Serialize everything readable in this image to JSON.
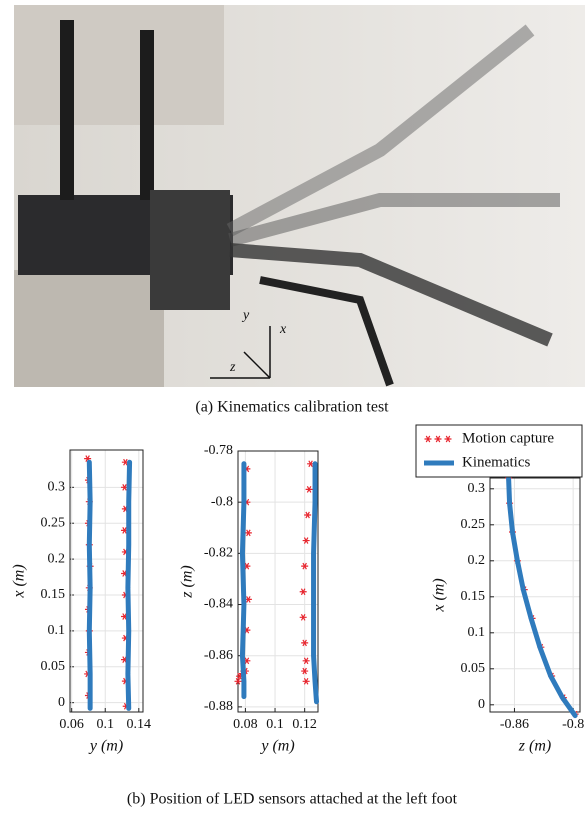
{
  "figure": {
    "photo_caption": "(a) Kinematics calibration test",
    "photo_labels": [
      "y",
      "x",
      "z"
    ],
    "caption": "(b) Position of LED sensors attached at the left foot"
  },
  "chart_data": [
    {
      "type": "line",
      "xlabel": "y (m)",
      "ylabel": "x (m)",
      "xlim": [
        0.058,
        0.145
      ],
      "xticks": [
        0.06,
        0.1,
        0.14
      ],
      "ylim": [
        -0.013,
        0.352
      ],
      "yticks": [
        0,
        0.05,
        0.1,
        0.15,
        0.2,
        0.25,
        0.3
      ],
      "grid": true,
      "series": [
        {
          "color": "#e8262f",
          "style": "marker",
          "x": [
            0.079,
            0.08,
            0.081,
            0.08,
            0.081,
            0.082,
            0.081,
            0.08,
            0.081,
            0.08,
            0.079,
            0.08,
            null,
            0.124,
            0.123,
            0.124,
            0.123,
            0.124,
            0.123,
            0.124,
            0.123,
            0.124,
            0.123,
            0.124,
            0.125
          ],
          "values": [
            0.34,
            0.31,
            0.28,
            0.25,
            0.22,
            0.19,
            0.16,
            0.13,
            0.1,
            0.07,
            0.04,
            0.01,
            null,
            0.335,
            0.3,
            0.27,
            0.24,
            0.21,
            0.18,
            0.15,
            0.12,
            0.09,
            0.06,
            0.03,
            -0.005
          ]
        },
        {
          "color": "#2f7bbd",
          "style": "line",
          "x": [
            0.081,
            0.082,
            0.081,
            0.082,
            0.081,
            0.082,
            0.082,
            null,
            0.129,
            0.128,
            0.128,
            0.127,
            0.128,
            0.127,
            0.128
          ],
          "values": [
            0.335,
            0.28,
            0.22,
            0.16,
            0.1,
            0.04,
            -0.008,
            null,
            0.335,
            0.28,
            0.22,
            0.16,
            0.1,
            0.04,
            -0.008
          ]
        }
      ]
    },
    {
      "type": "line",
      "xlabel": "y (m)",
      "ylabel": "z (m)",
      "xlim": [
        0.075,
        0.129
      ],
      "xticks": [
        0.08,
        0.1,
        0.12
      ],
      "ylim": [
        -0.882,
        -0.78
      ],
      "yticks": [
        -0.78,
        -0.8,
        -0.82,
        -0.84,
        -0.86,
        -0.88
      ],
      "grid": true,
      "series": [
        {
          "color": "#e8262f",
          "style": "marker",
          "x": [
            0.081,
            0.081,
            0.082,
            0.081,
            0.082,
            0.081,
            0.081,
            0.08,
            0.078,
            0.076,
            0.075,
            null,
            0.124,
            0.123,
            0.122,
            0.121,
            0.12,
            0.119,
            0.119,
            0.12,
            0.121,
            0.12,
            0.121
          ],
          "values": [
            -0.787,
            -0.8,
            -0.812,
            -0.825,
            -0.838,
            -0.85,
            -0.862,
            -0.866,
            -0.867,
            -0.868,
            -0.87,
            null,
            -0.785,
            -0.795,
            -0.805,
            -0.815,
            -0.825,
            -0.835,
            -0.845,
            -0.855,
            -0.862,
            -0.866,
            -0.87
          ]
        },
        {
          "color": "#2f7bbd",
          "style": "line",
          "x": [
            0.079,
            0.079,
            0.078,
            0.079,
            0.078,
            0.079,
            0.079,
            null,
            0.127,
            0.127,
            0.126,
            0.126,
            0.126,
            0.127,
            0.128
          ],
          "values": [
            -0.785,
            -0.8,
            -0.82,
            -0.84,
            -0.86,
            -0.87,
            -0.876,
            null,
            -0.785,
            -0.8,
            -0.82,
            -0.84,
            -0.86,
            -0.87,
            -0.878
          ]
        }
      ]
    },
    {
      "type": "line",
      "xlabel": "z (m)",
      "ylabel": "x (m)",
      "xlim": [
        -0.885,
        -0.793
      ],
      "xticks": [
        -0.86,
        -0.8
      ],
      "ylim": [
        -0.01,
        0.315
      ],
      "yticks": [
        0,
        0.05,
        0.1,
        0.15,
        0.2,
        0.25,
        0.3
      ],
      "grid": true,
      "legend": "top",
      "series": [
        {
          "name": "Motion capture",
          "color": "#e8262f",
          "style": "marker",
          "x": [
            -0.866,
            -0.865,
            -0.862,
            -0.857,
            -0.85,
            -0.842,
            -0.833,
            -0.822,
            -0.81,
            -0.798
          ],
          "values": [
            0.315,
            0.28,
            0.24,
            0.2,
            0.16,
            0.12,
            0.08,
            0.04,
            0.01,
            -0.013
          ]
        },
        {
          "name": "Kinematics",
          "color": "#2f7bbd",
          "style": "line",
          "x": [
            -0.866,
            -0.865,
            -0.862,
            -0.857,
            -0.851,
            -0.843,
            -0.834,
            -0.823,
            -0.811,
            -0.798
          ],
          "values": [
            0.315,
            0.28,
            0.24,
            0.2,
            0.16,
            0.12,
            0.08,
            0.04,
            0.01,
            -0.015
          ]
        }
      ]
    }
  ]
}
